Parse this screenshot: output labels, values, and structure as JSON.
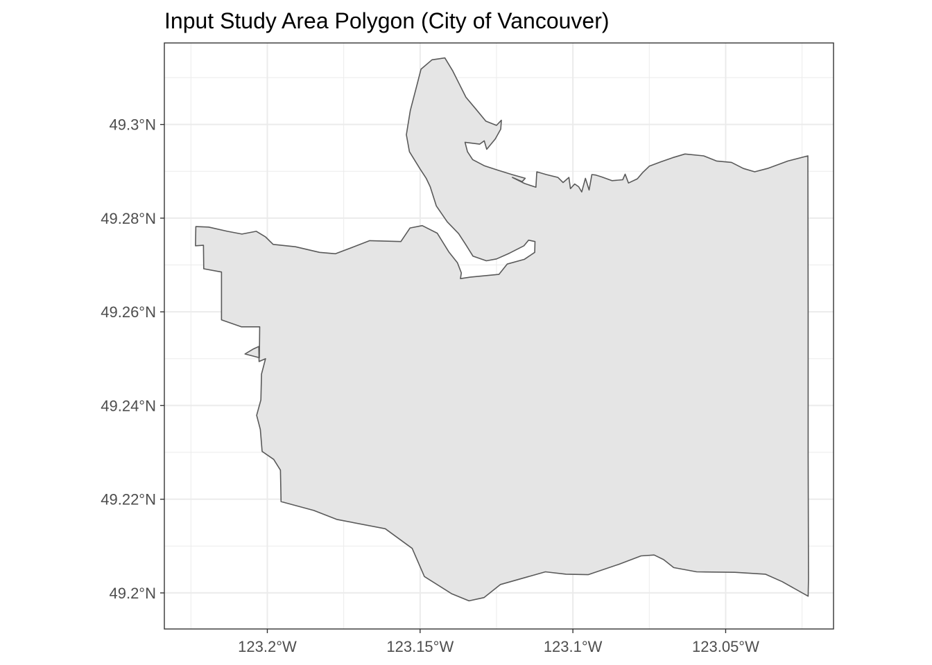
{
  "title": "Input Study Area Polygon (City of Vancouver)",
  "map": {
    "type": "polygon-map",
    "projection": "longitude-latitude",
    "feature": "City of Vancouver boundary",
    "fill_color": "#e5e5e5",
    "outline_color": "#595959",
    "panel_border_color": "#333333",
    "grid_color": "#ebebeb",
    "background_color": "#ffffff",
    "grid": true,
    "x_axis": {
      "range": [
        -123.2337,
        -123.0147
      ],
      "ticks": [
        -123.2,
        -123.15,
        -123.1,
        -123.05
      ],
      "tick_labels": [
        "123.2°W",
        "123.15°W",
        "123.1°W",
        "123.05°W"
      ]
    },
    "y_axis": {
      "range": [
        49.1923,
        49.3174
      ],
      "ticks": [
        49.3,
        49.28,
        49.26,
        49.24,
        49.22,
        49.2
      ],
      "tick_labels": [
        "49.3°N",
        "49.28°N",
        "49.26°N",
        "49.24°N",
        "49.22°N",
        "49.2°N"
      ]
    },
    "boundary_lonlat": [
      [
        -123.2234,
        49.2782
      ],
      [
        -123.2192,
        49.2781
      ],
      [
        -123.2131,
        49.2772
      ],
      [
        -123.2083,
        49.2766
      ],
      [
        -123.2036,
        49.2772
      ],
      [
        -123.2006,
        49.276
      ],
      [
        -123.1981,
        49.2744
      ],
      [
        -123.1908,
        49.2739
      ],
      [
        -123.1829,
        49.2727
      ],
      [
        -123.1777,
        49.2724
      ],
      [
        -123.172,
        49.2738
      ],
      [
        -123.1665,
        49.2752
      ],
      [
        -123.1563,
        49.275
      ],
      [
        -123.1533,
        49.2779
      ],
      [
        -123.1493,
        49.2784
      ],
      [
        -123.1444,
        49.2768
      ],
      [
        -123.1406,
        49.2728
      ],
      [
        -123.1378,
        49.2705
      ],
      [
        -123.1365,
        49.2683
      ],
      [
        -123.1368,
        49.2671
      ],
      [
        -123.1336,
        49.2674
      ],
      [
        -123.1242,
        49.268
      ],
      [
        -123.1215,
        49.2702
      ],
      [
        -123.1159,
        49.2712
      ],
      [
        -123.1125,
        49.2727
      ],
      [
        -123.1124,
        49.275
      ],
      [
        -123.1145,
        49.2753
      ],
      [
        -123.116,
        49.2741
      ],
      [
        -123.1208,
        49.2725
      ],
      [
        -123.125,
        49.2713
      ],
      [
        -123.1283,
        49.2709
      ],
      [
        -123.1327,
        49.2719
      ],
      [
        -123.1352,
        49.2745
      ],
      [
        -123.1374,
        49.2767
      ],
      [
        -123.1411,
        49.2792
      ],
      [
        -123.1447,
        49.2826
      ],
      [
        -123.1467,
        49.2867
      ],
      [
        -123.148,
        49.2885
      ],
      [
        -123.15,
        49.2905
      ],
      [
        -123.1535,
        49.2942
      ],
      [
        -123.1545,
        49.2978
      ],
      [
        -123.1532,
        49.303
      ],
      [
        -123.151,
        49.3085
      ],
      [
        -123.1497,
        49.3118
      ],
      [
        -123.1461,
        49.3138
      ],
      [
        -123.1419,
        49.3142
      ],
      [
        -123.1393,
        49.3114
      ],
      [
        -123.1373,
        49.3088
      ],
      [
        -123.135,
        49.3058
      ],
      [
        -123.1319,
        49.3034
      ],
      [
        -123.1285,
        49.3007
      ],
      [
        -123.125,
        49.2998
      ],
      [
        -123.1234,
        49.3009
      ],
      [
        -123.1236,
        49.299
      ],
      [
        -123.1254,
        49.2969
      ],
      [
        -123.1282,
        49.2947
      ],
      [
        -123.129,
        49.2965
      ],
      [
        -123.1305,
        49.2958
      ],
      [
        -123.1353,
        49.2962
      ],
      [
        -123.1345,
        49.2942
      ],
      [
        -123.1328,
        49.2925
      ],
      [
        -123.129,
        49.2912
      ],
      [
        -123.1244,
        49.2902
      ],
      [
        -123.1199,
        49.2893
      ],
      [
        -123.1156,
        49.2885
      ],
      [
        -123.1166,
        49.2878
      ],
      [
        -123.1198,
        49.2887
      ],
      [
        -123.1158,
        49.2874
      ],
      [
        -123.1121,
        49.2866
      ],
      [
        -123.1118,
        49.2899
      ],
      [
        -123.1087,
        49.2893
      ],
      [
        -123.1049,
        49.2887
      ],
      [
        -123.1032,
        49.2876
      ],
      [
        -123.1013,
        49.2887
      ],
      [
        -123.1008,
        49.2863
      ],
      [
        -123.0994,
        49.2873
      ],
      [
        -123.0981,
        49.2867
      ],
      [
        -123.0971,
        49.2856
      ],
      [
        -123.0959,
        49.2885
      ],
      [
        -123.0947,
        49.286
      ],
      [
        -123.0938,
        49.2893
      ],
      [
        -123.0925,
        49.2892
      ],
      [
        -123.0906,
        49.2888
      ],
      [
        -123.0872,
        49.288
      ],
      [
        -123.0837,
        49.2882
      ],
      [
        -123.0829,
        49.2894
      ],
      [
        -123.0818,
        49.2875
      ],
      [
        -123.0789,
        49.2884
      ],
      [
        -123.0772,
        49.2897
      ],
      [
        -123.075,
        49.2911
      ],
      [
        -123.0713,
        49.292
      ],
      [
        -123.0674,
        49.2929
      ],
      [
        -123.0633,
        49.2937
      ],
      [
        -123.0572,
        49.2933
      ],
      [
        -123.053,
        49.2922
      ],
      [
        -123.0481,
        49.2919
      ],
      [
        -123.0442,
        49.2906
      ],
      [
        -123.0405,
        49.2899
      ],
      [
        -123.0363,
        49.2906
      ],
      [
        -123.0296,
        49.2922
      ],
      [
        -123.0231,
        49.2933
      ],
      [
        -123.023,
        49.2601
      ],
      [
        -123.023,
        49.2291
      ],
      [
        -123.0229,
        49.203
      ],
      [
        -123.023,
        49.1993
      ],
      [
        -123.0315,
        49.2024
      ],
      [
        -123.037,
        49.204
      ],
      [
        -123.047,
        49.2044
      ],
      [
        -123.0595,
        49.2045
      ],
      [
        -123.067,
        49.2054
      ],
      [
        -123.0703,
        49.2071
      ],
      [
        -123.0734,
        49.2081
      ],
      [
        -123.0777,
        49.2079
      ],
      [
        -123.085,
        49.2061
      ],
      [
        -123.095,
        49.2039
      ],
      [
        -123.1022,
        49.204
      ],
      [
        -123.109,
        49.2045
      ],
      [
        -123.1237,
        49.2018
      ],
      [
        -123.1291,
        49.199
      ],
      [
        -123.134,
        49.1983
      ],
      [
        -123.1396,
        49.1998
      ],
      [
        -123.1486,
        49.2035
      ],
      [
        -123.1526,
        49.2095
      ],
      [
        -123.1614,
        49.2137
      ],
      [
        -123.1773,
        49.2157
      ],
      [
        -123.1848,
        49.2176
      ],
      [
        -123.1955,
        49.2195
      ],
      [
        -123.1957,
        49.2262
      ],
      [
        -123.1979,
        49.2285
      ],
      [
        -123.2017,
        49.2302
      ],
      [
        -123.2023,
        49.2349
      ],
      [
        -123.2035,
        49.2379
      ],
      [
        -123.2021,
        49.2412
      ],
      [
        -123.2019,
        49.2467
      ],
      [
        -123.2006,
        49.25
      ],
      [
        -123.2027,
        49.2494
      ],
      [
        -123.2028,
        49.2526
      ],
      [
        -123.2045,
        49.2521
      ],
      [
        -123.2073,
        49.251
      ],
      [
        -123.2026,
        49.2502
      ],
      [
        -123.2025,
        49.2568
      ],
      [
        -123.2085,
        49.2568
      ],
      [
        -123.215,
        49.2583
      ],
      [
        -123.215,
        49.2685
      ],
      [
        -123.2208,
        49.2692
      ],
      [
        -123.2209,
        49.2742
      ],
      [
        -123.2235,
        49.2741
      ],
      [
        -123.2234,
        49.2782
      ]
    ]
  }
}
